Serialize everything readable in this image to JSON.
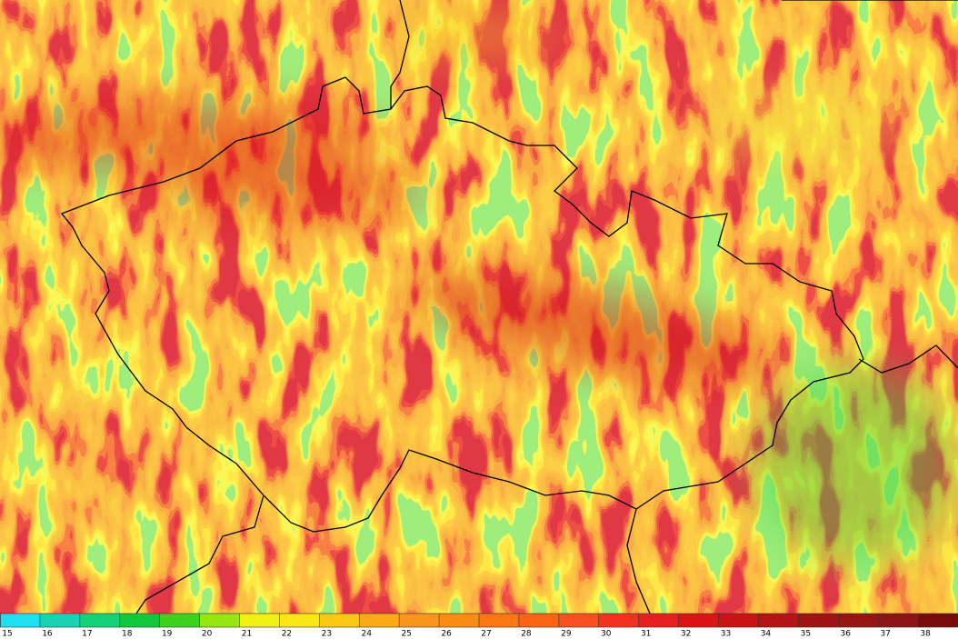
{
  "colorbar": {
    "labels": [
      15,
      16,
      17,
      18,
      19,
      20,
      21,
      22,
      23,
      24,
      25,
      26,
      27,
      28,
      29,
      30,
      31,
      32,
      33,
      34,
      35,
      36,
      37,
      38
    ],
    "colors": [
      "#1ee0f0",
      "#18d2b4",
      "#14d278",
      "#10c83c",
      "#3cd21e",
      "#96e614",
      "#f0f014",
      "#fae614",
      "#fac814",
      "#faaa14",
      "#fa961e",
      "#fa8c14",
      "#fa7814",
      "#fa6414",
      "#f5501e",
      "#f0321e",
      "#e61e1e",
      "#dc1414",
      "#c81414",
      "#b41414",
      "#a01414",
      "#961414",
      "#8c1414",
      "#780a0a"
    ]
  }
}
